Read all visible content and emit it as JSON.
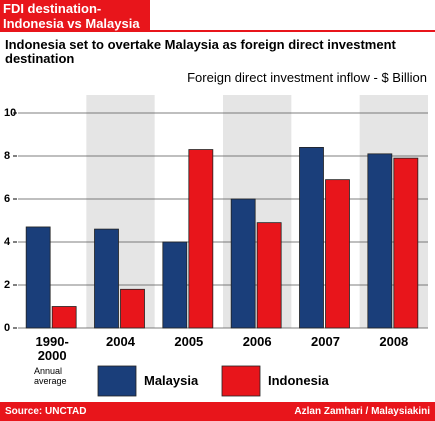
{
  "chart_data": {
    "type": "bar",
    "title": "FDI destination-Indonesia vs Malaysia",
    "subtitle": "Indonesia set to overtake Malaysia as foreign direct investment destination",
    "y_label": "Foreign direct investment inflow - $ Billion",
    "categories": [
      "1990-2000",
      "2004",
      "2005",
      "2006",
      "2007",
      "2008"
    ],
    "annotation": "Annual average",
    "series": [
      {
        "name": "Malaysia",
        "color": "#1a3e7a",
        "values": [
          4.7,
          4.6,
          4.0,
          6.0,
          8.4,
          8.1
        ]
      },
      {
        "name": "Indonesia",
        "color": "#e8151b",
        "values": [
          1.0,
          1.8,
          8.3,
          4.9,
          6.9,
          7.9
        ]
      }
    ],
    "ylim": [
      0,
      10
    ],
    "yticks": [
      0,
      2,
      4,
      6,
      8,
      10
    ],
    "grid": true,
    "source": "Source: UNCTAD",
    "credit": "Azlan Zamhari / Malaysiakini"
  }
}
